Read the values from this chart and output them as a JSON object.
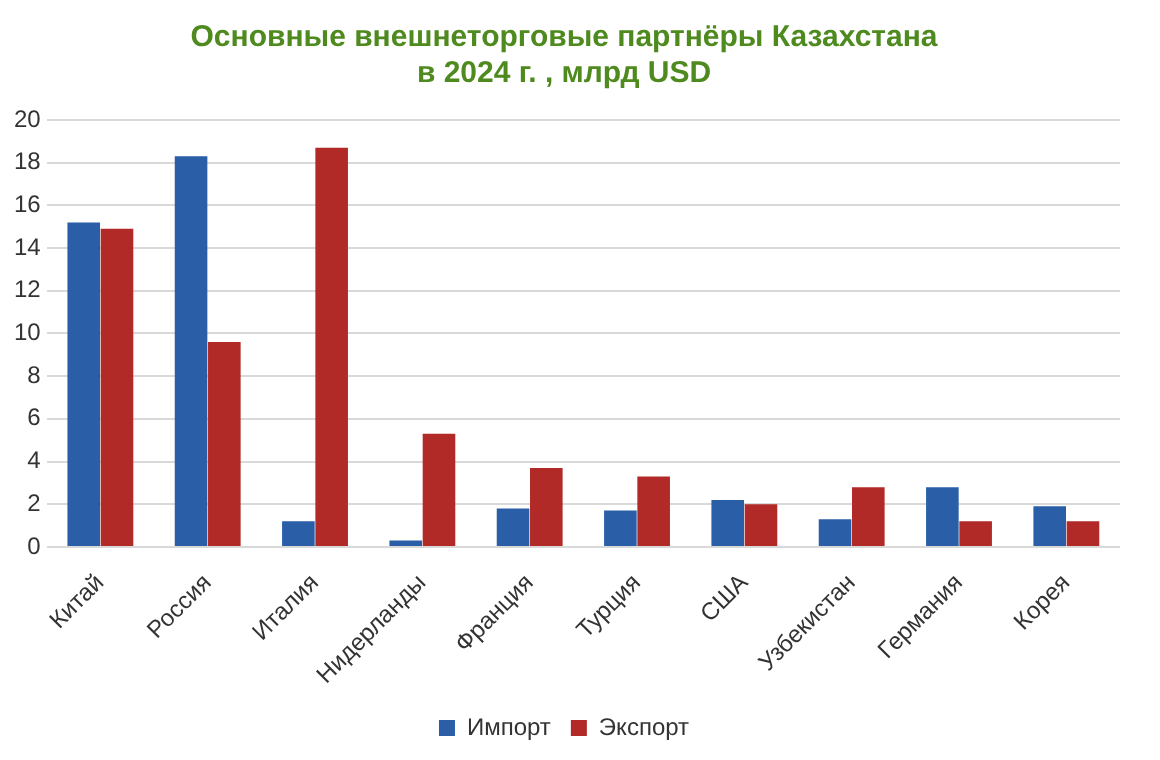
{
  "chart_data": {
    "type": "bar",
    "title": "Основные внешнеторговые партнёры Казахстана\nв 2024 г. , млрд USD",
    "categories": [
      "Китай",
      "Россия",
      "Италия",
      "Нидерланды",
      "Франция",
      "Турция",
      "США",
      "Узбекистан",
      "Германия",
      "Корея"
    ],
    "series": [
      {
        "name": "Импорт",
        "color": "#2a5fa8",
        "values": [
          15.2,
          18.3,
          1.2,
          0.3,
          1.8,
          1.7,
          2.2,
          1.3,
          2.8,
          1.9
        ]
      },
      {
        "name": "Экспорт",
        "color": "#b22a28",
        "values": [
          14.9,
          9.6,
          18.7,
          5.3,
          3.7,
          3.3,
          2.0,
          2.8,
          1.2,
          1.2
        ]
      }
    ],
    "ylim": [
      0,
      20
    ],
    "yticks": [
      0,
      2,
      4,
      6,
      8,
      10,
      12,
      14,
      16,
      18,
      20
    ],
    "grid": "y",
    "legend": "bottom"
  }
}
